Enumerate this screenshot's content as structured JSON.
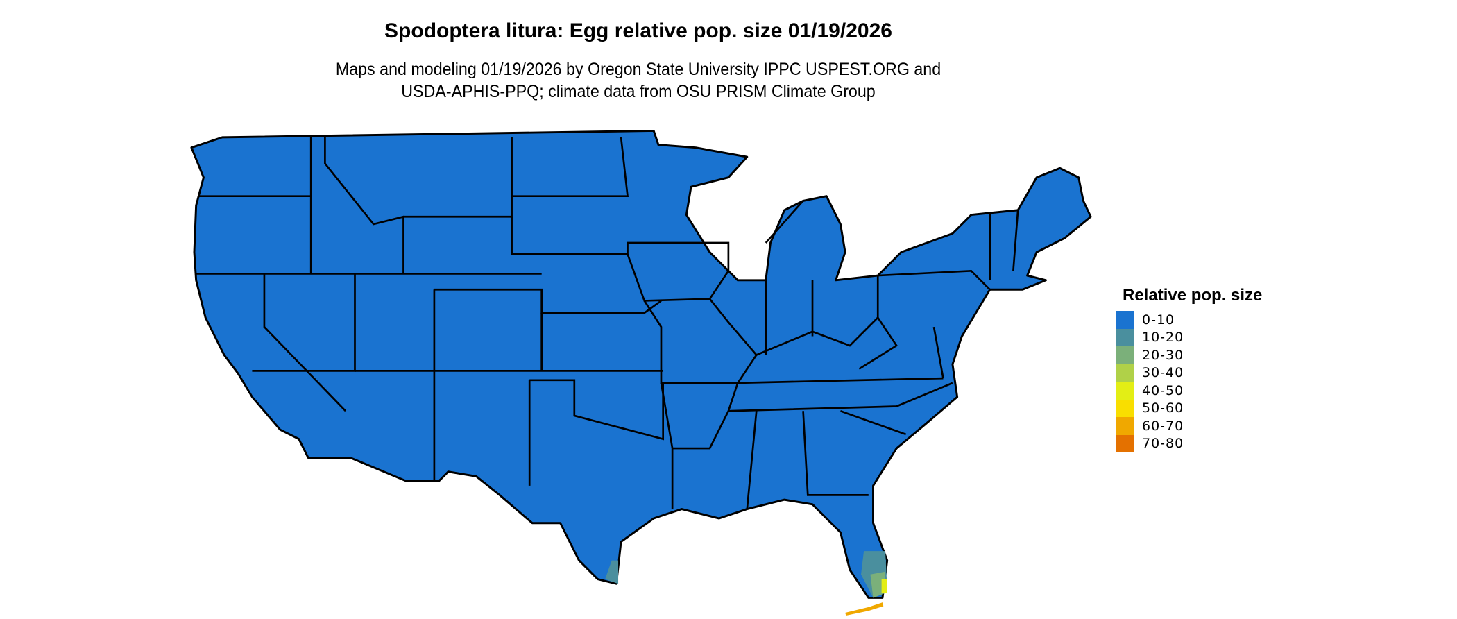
{
  "title": "Spodoptera litura: Egg relative pop. size 01/19/2026",
  "subtitle_line1": "Maps and modeling 01/19/2026 by Oregon State University IPPC USPEST.ORG and",
  "subtitle_line2": "USDA-APHIS-PPQ; climate data from OSU PRISM Climate Group",
  "legend": {
    "title": "Relative pop. size",
    "items": [
      {
        "label": "0-10",
        "color": "#1a73d0"
      },
      {
        "label": "10-20",
        "color": "#4a8f9e"
      },
      {
        "label": "20-30",
        "color": "#7bb07a"
      },
      {
        "label": "30-40",
        "color": "#b0d148"
      },
      {
        "label": "40-50",
        "color": "#e3ee15"
      },
      {
        "label": "50-60",
        "color": "#f9de00"
      },
      {
        "label": "60-70",
        "color": "#f0a800"
      },
      {
        "label": "70-80",
        "color": "#e47100"
      }
    ]
  },
  "map": {
    "region": "Contiguous United States",
    "dominant_class": "0-10",
    "hotspots": [
      "South Texas coast: 10-20",
      "South Florida: 10-60",
      "Florida Keys: 60-70"
    ]
  }
}
